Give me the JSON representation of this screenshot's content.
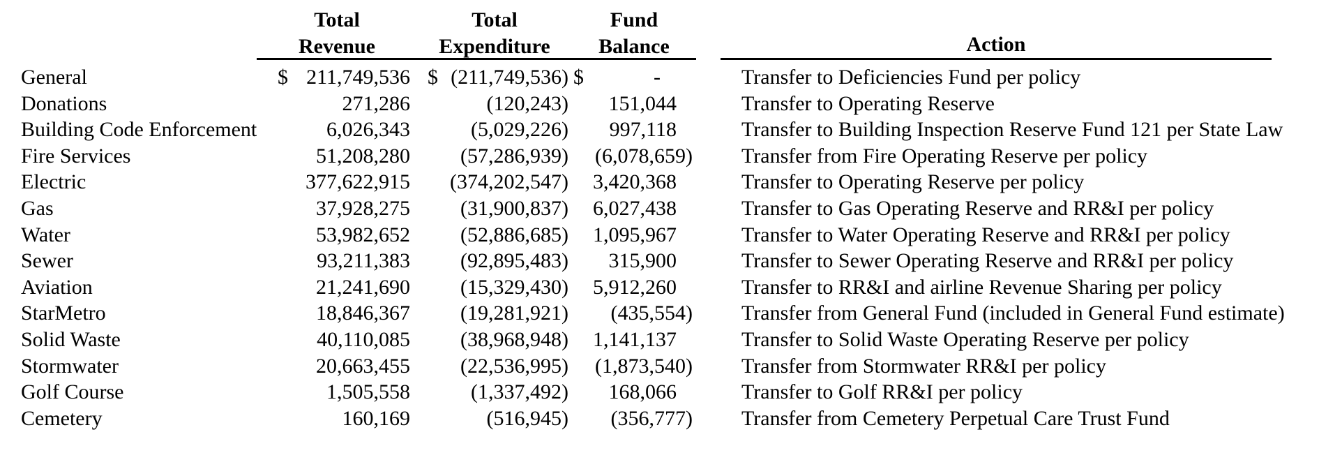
{
  "page": {
    "background_color": "#ffffff",
    "text_color": "#000000",
    "rule_color": "#000000"
  },
  "table": {
    "column_headers": {
      "revenue": {
        "line1": "Total",
        "line2": "Revenue"
      },
      "expenditure": {
        "line1": "Total",
        "line2": "Expenditure"
      },
      "balance": {
        "line1": "Fund",
        "line2": "Balance"
      },
      "action": "Action"
    },
    "rows": [
      {
        "fund": "General",
        "currency": "$",
        "revenue": "211,749,536",
        "expenditure": "(211,749,536)",
        "balance": "-",
        "action": "Transfer to Deficiencies Fund per policy"
      },
      {
        "fund": "Donations",
        "currency": "",
        "revenue": "271,286",
        "expenditure": "(120,243)",
        "balance": "151,044",
        "action": "Transfer to Operating Reserve"
      },
      {
        "fund": "Building Code Enforcement",
        "currency": "",
        "revenue": "6,026,343",
        "expenditure": "(5,029,226)",
        "balance": "997,118",
        "action": "Transfer to Building Inspection Reserve Fund 121 per State Law"
      },
      {
        "fund": "Fire Services",
        "currency": "",
        "revenue": "51,208,280",
        "expenditure": "(57,286,939)",
        "balance": "(6,078,659)",
        "action": "Transfer from Fire Operating Reserve per policy"
      },
      {
        "fund": "Electric",
        "currency": "",
        "revenue": "377,622,915",
        "expenditure": "(374,202,547)",
        "balance": "3,420,368",
        "action": "Transfer to Operating Reserve per policy"
      },
      {
        "fund": "Gas",
        "currency": "",
        "revenue": "37,928,275",
        "expenditure": "(31,900,837)",
        "balance": "6,027,438",
        "action": "Transfer to Gas Operating Reserve and RR&I per policy"
      },
      {
        "fund": "Water",
        "currency": "",
        "revenue": "53,982,652",
        "expenditure": "(52,886,685)",
        "balance": "1,095,967",
        "action": "Transfer to Water Operating Reserve and RR&I per policy"
      },
      {
        "fund": "Sewer",
        "currency": "",
        "revenue": "93,211,383",
        "expenditure": "(92,895,483)",
        "balance": "315,900",
        "action": "Transfer to Sewer Operating Reserve and RR&I per policy"
      },
      {
        "fund": "Aviation",
        "currency": "",
        "revenue": "21,241,690",
        "expenditure": "(15,329,430)",
        "balance": "5,912,260",
        "action": "Transfer to RR&I and airline Revenue Sharing per policy"
      },
      {
        "fund": "StarMetro",
        "currency": "",
        "revenue": "18,846,367",
        "expenditure": "(19,281,921)",
        "balance": "(435,554)",
        "action": "Transfer from General Fund (included in General Fund estimate)"
      },
      {
        "fund": "Solid Waste",
        "currency": "",
        "revenue": "40,110,085",
        "expenditure": "(38,968,948)",
        "balance": "1,141,137",
        "action": "Transfer to Solid Waste Operating Reserve per policy"
      },
      {
        "fund": "Stormwater",
        "currency": "",
        "revenue": "20,663,455",
        "expenditure": "(22,536,995)",
        "balance": "(1,873,540)",
        "action": "Transfer from Stormwater RR&I per policy"
      },
      {
        "fund": "Golf Course",
        "currency": "",
        "revenue": "1,505,558",
        "expenditure": "(1,337,492)",
        "balance": "168,066",
        "action": "Transfer to Golf RR&I per policy"
      },
      {
        "fund": "Cemetery",
        "currency": "",
        "revenue": "160,169",
        "expenditure": "(516,945)",
        "balance": "(356,777)",
        "action": "Transfer from Cemetery Perpetual Care Trust Fund"
      }
    ]
  }
}
